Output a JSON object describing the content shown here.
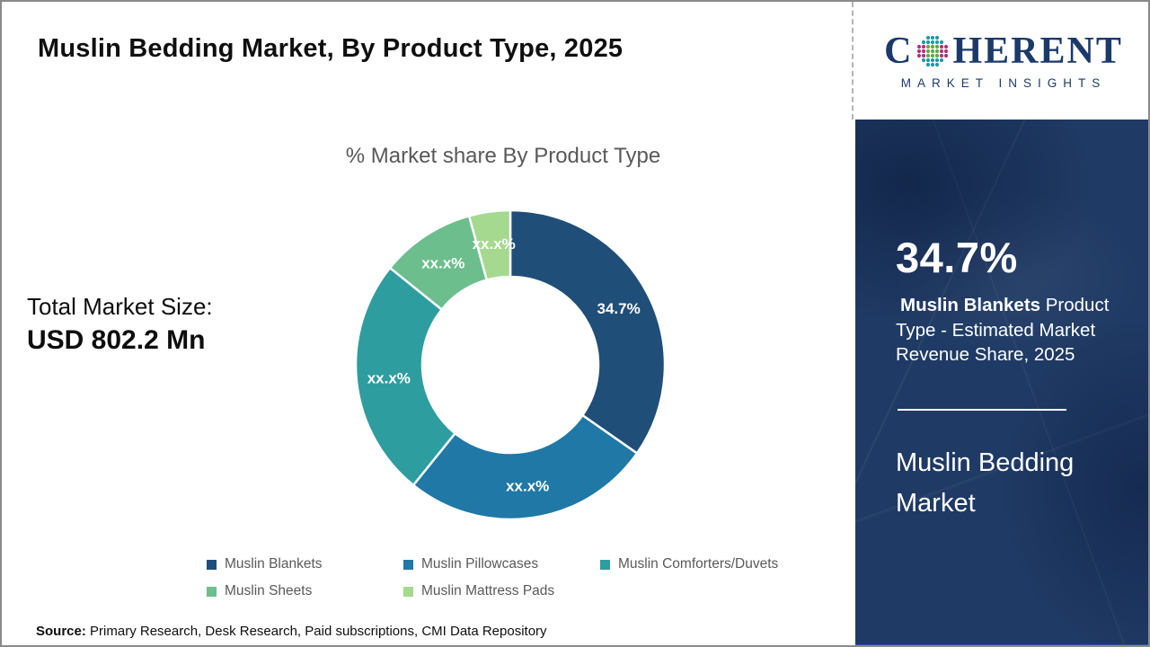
{
  "header": {
    "title": "Muslin Bedding Market, By Product Type, 2025"
  },
  "logo": {
    "brand_c": "C",
    "brand_rest": "HERENT",
    "brand_sub": "MARKET INSIGHTS",
    "navy": "#1b3a6b",
    "globe_colors": {
      "teal": "#1c9aa8",
      "green": "#62a83e",
      "magenta": "#b52e83"
    }
  },
  "chart_data": {
    "type": "pie",
    "donut": true,
    "title": "% Market share By Product Type",
    "categories": [
      "Muslin Blankets",
      "Muslin Pillowcases",
      "Muslin Comforters/Duvets",
      "Muslin Sheets",
      "Muslin Mattress Pads"
    ],
    "values": [
      34.7,
      26.1,
      25.0,
      9.9,
      4.3
    ],
    "labels": [
      "34.7%",
      "xx.x%",
      "xx.x%",
      "xx.x%",
      "xx.x%"
    ],
    "colors": [
      "#1f4e79",
      "#1f78a5",
      "#2e9d9f",
      "#6dbe8d",
      "#a5d98f"
    ],
    "start_angle_deg": 0,
    "legend_position": "bottom",
    "label_color": "#ffffff"
  },
  "total_market": {
    "label": "Total Market Size:",
    "value": "USD 802.2 Mn"
  },
  "sidebar": {
    "stat_value": "34.7%",
    "stat_bold": "Muslin Blankets",
    "stat_rest": " Product Type - Estimated Market Revenue Share, 2025",
    "market_name": "Muslin Bedding Market",
    "bg_color": "#1f3a64"
  },
  "source": {
    "label": "Source:",
    "text": " Primary Research, Desk Research, Paid subscriptions, CMI Data Repository"
  }
}
